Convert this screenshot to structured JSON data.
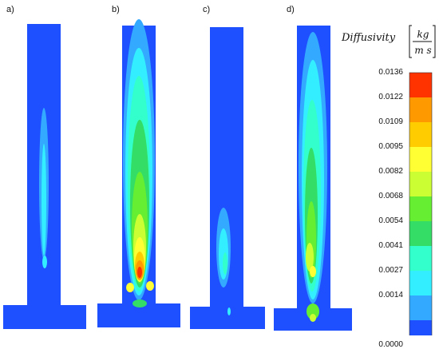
{
  "chart_data": {
    "type": "heatmap",
    "panels": [
      "a)",
      "b)",
      "c)",
      "d)"
    ],
    "colorbar": {
      "title": "Diffusivity",
      "unit_numerator": "kg",
      "unit_denominator": "m s",
      "tick_labels": [
        "0.0136",
        "0.0122",
        "0.0109",
        "0.0095",
        "0.0082",
        "0.0068",
        "0.0054",
        "0.0041",
        "0.0027",
        "0.0014",
        "0.0000"
      ],
      "ticks": [
        0.0136,
        0.0122,
        0.0109,
        0.0095,
        0.0082,
        0.0068,
        0.0054,
        0.0041,
        0.0027,
        0.0014,
        0.0
      ],
      "colors": [
        "#ff3300",
        "#ff9900",
        "#ffcc00",
        "#ffff33",
        "#ccff33",
        "#66ee33",
        "#33dd66",
        "#33ffcc",
        "#33eeff",
        "#33aaff",
        "#1e50ff"
      ]
    }
  }
}
